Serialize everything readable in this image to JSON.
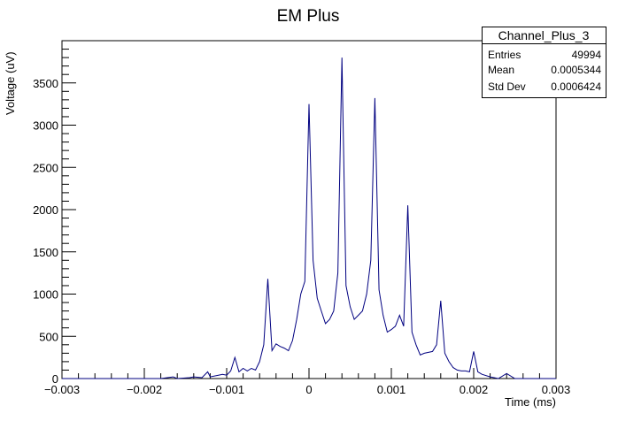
{
  "chart_data": {
    "type": "line",
    "title": "EM Plus",
    "xlabel": "Time (ms)",
    "ylabel": "Voltage (uV)",
    "xlim": [
      -0.003,
      0.003
    ],
    "ylim": [
      0,
      4000
    ],
    "xticks": [
      -0.003,
      -0.002,
      -0.001,
      0,
      0.001,
      0.002,
      0.003
    ],
    "xtick_labels": [
      "−0.003",
      "−0.002",
      "−0.001",
      "0",
      "0.001",
      "0.002",
      "0.003"
    ],
    "yticks": [
      0,
      500,
      1000,
      1500,
      2000,
      2500,
      3000,
      3500
    ],
    "ytick_labels": [
      "0",
      "500",
      "1000",
      "1500",
      "2000",
      "2500",
      "3000",
      "3500"
    ],
    "grid": false,
    "line_color": "#000080",
    "series": [
      {
        "x": [
          -0.003,
          -0.0028,
          -0.0026,
          -0.0024,
          -0.0022,
          -0.002,
          -0.0018,
          -0.00165,
          -0.0016,
          -0.00145,
          -0.0014,
          -0.0013,
          -0.00123,
          -0.0012,
          -0.0011,
          -0.00105,
          -0.001,
          -0.00095,
          -0.0009,
          -0.00085,
          -0.0008,
          -0.00075,
          -0.0007,
          -0.00065,
          -0.0006,
          -0.00055,
          -0.0005,
          -0.00045,
          -0.0004,
          -0.00035,
          -0.0003,
          -0.00025,
          -0.0002,
          -0.00015,
          -0.0001,
          -5e-05,
          0.0,
          5e-05,
          0.0001,
          0.00015,
          0.0002,
          0.00025,
          0.0003,
          0.00035,
          0.0004,
          0.00045,
          0.0005,
          0.00055,
          0.0006,
          0.00065,
          0.0007,
          0.00075,
          0.0008,
          0.00085,
          0.0009,
          0.00095,
          0.001,
          0.00105,
          0.0011,
          0.00115,
          0.0012,
          0.00125,
          0.0013,
          0.00135,
          0.0014,
          0.00145,
          0.0015,
          0.00155,
          0.0016,
          0.00165,
          0.0017,
          0.00175,
          0.0018,
          0.00185,
          0.0019,
          0.00195,
          0.002,
          0.00205,
          0.0021,
          0.0022,
          0.0023,
          0.0024,
          0.0025,
          0.0026,
          0.0028,
          0.003
        ],
        "y": [
          0,
          0,
          0,
          0,
          0,
          0,
          0,
          20,
          0,
          10,
          20,
          10,
          80,
          20,
          40,
          50,
          40,
          90,
          250,
          80,
          120,
          90,
          120,
          100,
          200,
          400,
          1180,
          330,
          410,
          380,
          360,
          330,
          450,
          700,
          1000,
          1150,
          3250,
          1400,
          950,
          800,
          650,
          700,
          800,
          1250,
          3800,
          1100,
          850,
          700,
          750,
          800,
          1000,
          1400,
          3320,
          1050,
          750,
          550,
          580,
          620,
          750,
          620,
          2050,
          550,
          400,
          280,
          300,
          310,
          320,
          400,
          920,
          300,
          200,
          130,
          100,
          90,
          90,
          80,
          320,
          80,
          50,
          20,
          0,
          60,
          0,
          0,
          0,
          0
        ]
      }
    ]
  },
  "stats_box": {
    "name": "Channel_Plus_3",
    "rows": [
      {
        "label": "Entries",
        "value": "49994"
      },
      {
        "label": "Mean",
        "value": "0.0005344"
      },
      {
        "label": "Std Dev",
        "value": "0.0006424"
      }
    ]
  }
}
